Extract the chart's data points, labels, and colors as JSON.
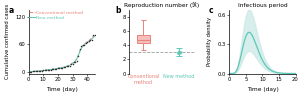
{
  "panel_a": {
    "title": "a",
    "xlabel": "Time (day)",
    "ylabel": "Cumulative confirmed cases",
    "xlim": [
      0,
      45
    ],
    "ylim": [
      -3,
      135
    ],
    "xticks": [
      0,
      10,
      20,
      30,
      40
    ],
    "yticks": [
      0,
      60,
      120
    ],
    "conventional_color": "#e8837a",
    "new_color": "#5cc8b8",
    "data_color": "#303030",
    "legend_entries": [
      "Conventional method",
      "New method"
    ],
    "seed": 42
  },
  "panel_b": {
    "title": "b",
    "panel_title": "Reproduction number (ℜ)",
    "xlabel_conv": "Conventional\nmethod",
    "xlabel_new": "New method",
    "ylim": [
      0,
      9
    ],
    "yticks": [
      0,
      2,
      4,
      6,
      8
    ],
    "dashed_line_y": 3.0,
    "conv_box": {
      "median": 4.8,
      "q1": 4.3,
      "q3": 5.5,
      "whisker_low": 3.3,
      "whisker_high": 7.6,
      "color": "#e8837a",
      "fill": "#f5c0bc"
    },
    "new_points": {
      "values": [
        2.85,
        2.9,
        2.95,
        3.0,
        3.0,
        3.05,
        3.1,
        3.15,
        3.0,
        2.92
      ],
      "yerr_low": 0.55,
      "yerr_high": 0.55,
      "color": "#5cc8b8"
    }
  },
  "panel_c": {
    "title": "c",
    "panel_title": "Infectious period",
    "xlabel": "Time (day)",
    "ylabel": "Probability density",
    "xlim": [
      0,
      20
    ],
    "ylim": [
      0,
      0.65
    ],
    "xticks": [
      0,
      5,
      10,
      15,
      20
    ],
    "yticks": [
      0.0,
      0.3,
      0.6
    ],
    "gamma_shape": 8.0,
    "gamma_scale": 0.85,
    "peak_scale": 0.42,
    "curve_color": "#5cc8b8",
    "shade_color": "#c8e8e4",
    "shade_alpha": 0.7,
    "band_factor_low": 0.55,
    "band_factor_high": 1.55
  }
}
